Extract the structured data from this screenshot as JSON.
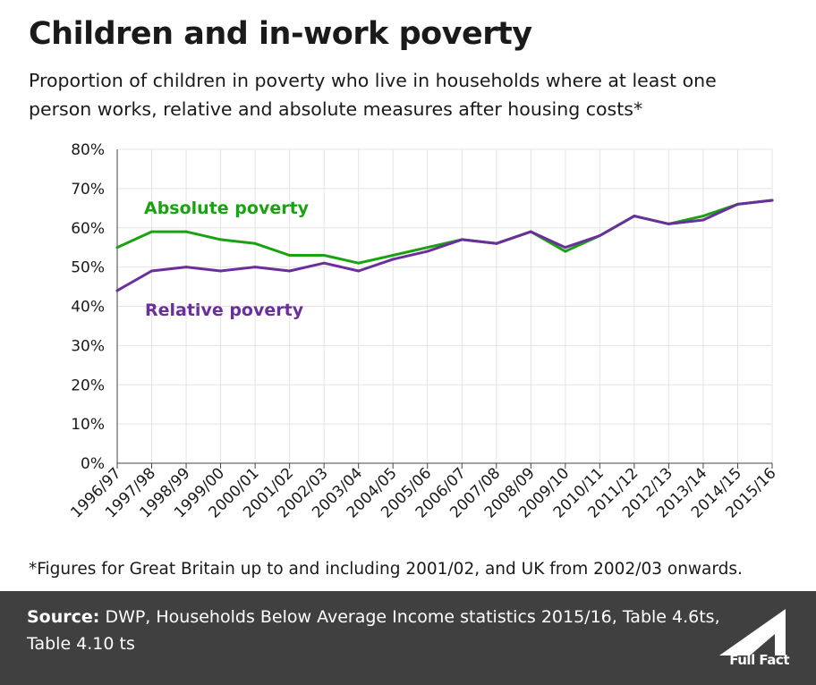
{
  "title": "Children and in-work poverty",
  "subtitle": "Proportion of children in poverty who live in households where at least one person works, relative and absolute measures after housing costs*",
  "footnote": "*Figures for Great Britain up to and including 2001/02, and UK from 2002/03 onwards.",
  "source": {
    "label": "Source:",
    "text": "DWP, Households Below Average Income statistics 2015/16, Table 4.6ts, Table 4.10 ts"
  },
  "logo_text": "Full Fact",
  "chart_data": {
    "type": "line",
    "title": "Children and in-work poverty",
    "xlabel": "",
    "ylabel": "",
    "ylim": [
      0,
      80
    ],
    "y_ticks": [
      "0%",
      "10%",
      "20%",
      "30%",
      "40%",
      "50%",
      "60%",
      "70%",
      "80%"
    ],
    "y_tick_values": [
      0,
      10,
      20,
      30,
      40,
      50,
      60,
      70,
      80
    ],
    "grid": true,
    "legend": "inline labels",
    "categories": [
      "1996/97",
      "1997/98",
      "1998/99",
      "1999/00",
      "2000/01",
      "2001/02",
      "2002/03",
      "2003/04",
      "2004/05",
      "2005/06",
      "2006/07",
      "2007/08",
      "2008/09",
      "2009/10",
      "2010/11",
      "2011/12",
      "2012/13",
      "2013/14",
      "2014/15",
      "2015/16"
    ],
    "series": [
      {
        "name": "Absolute poverty",
        "color": "#1aa212",
        "values": [
          55,
          59,
          59,
          57,
          56,
          53,
          53,
          51,
          53,
          55,
          57,
          56,
          59,
          54,
          58,
          63,
          61,
          63,
          66,
          67
        ]
      },
      {
        "name": "Relative poverty",
        "color": "#6b2f9b",
        "values": [
          44,
          49,
          50,
          49,
          50,
          49,
          51,
          49,
          52,
          54,
          57,
          56,
          59,
          55,
          58,
          63,
          61,
          62,
          66,
          67
        ]
      }
    ]
  }
}
